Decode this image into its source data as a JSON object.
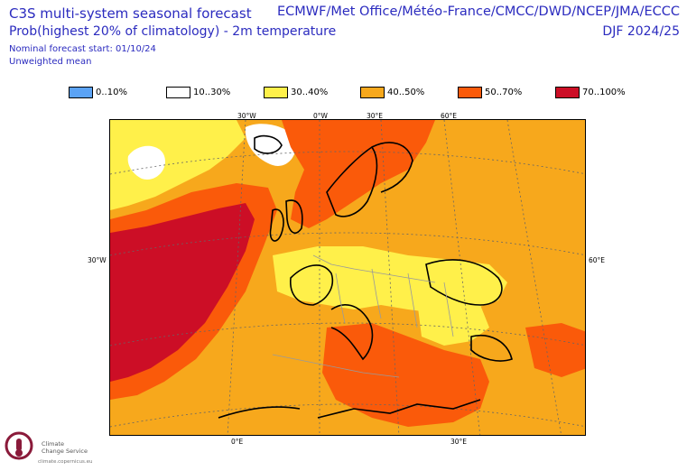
{
  "header": {
    "title_main": "C3S multi-system seasonal forecast",
    "title_variable": "Prob(highest 20% of climatology) - 2m temperature",
    "forecast_start": "Nominal forecast start: 01/10/24",
    "weighting": "Unweighted mean",
    "systems": "ECMWF/Met Office/Météo-France/CMCC/DWD/NCEP/JMA/ECCC",
    "season": "DJF 2024/25"
  },
  "legend": [
    {
      "label": "0..10%",
      "color": "#5ba3f5"
    },
    {
      "label": "10..30%",
      "color": "#ffffff"
    },
    {
      "label": "30..40%",
      "color": "#fff04a"
    },
    {
      "label": "40..50%",
      "color": "#f7a81c"
    },
    {
      "label": "50..70%",
      "color": "#fa5a0a"
    },
    {
      "label": "70..100%",
      "color": "#cc0e26"
    }
  ],
  "map": {
    "top_labels": [
      "30°W",
      "0°W",
      "30°E",
      "60°E"
    ],
    "left_label": "30°W",
    "right_label": "60°E",
    "bottom_labels": [
      "0°E",
      "30°E"
    ],
    "colors": {
      "yellow": "#fff04a",
      "orange": "#f7a81c",
      "red": "#fa5a0a",
      "darkred": "#cc0e26",
      "white": "#ffffff"
    }
  },
  "logo": {
    "line1": "Climate",
    "line2": "Change Service",
    "url": "climate.copernicus.eu"
  }
}
